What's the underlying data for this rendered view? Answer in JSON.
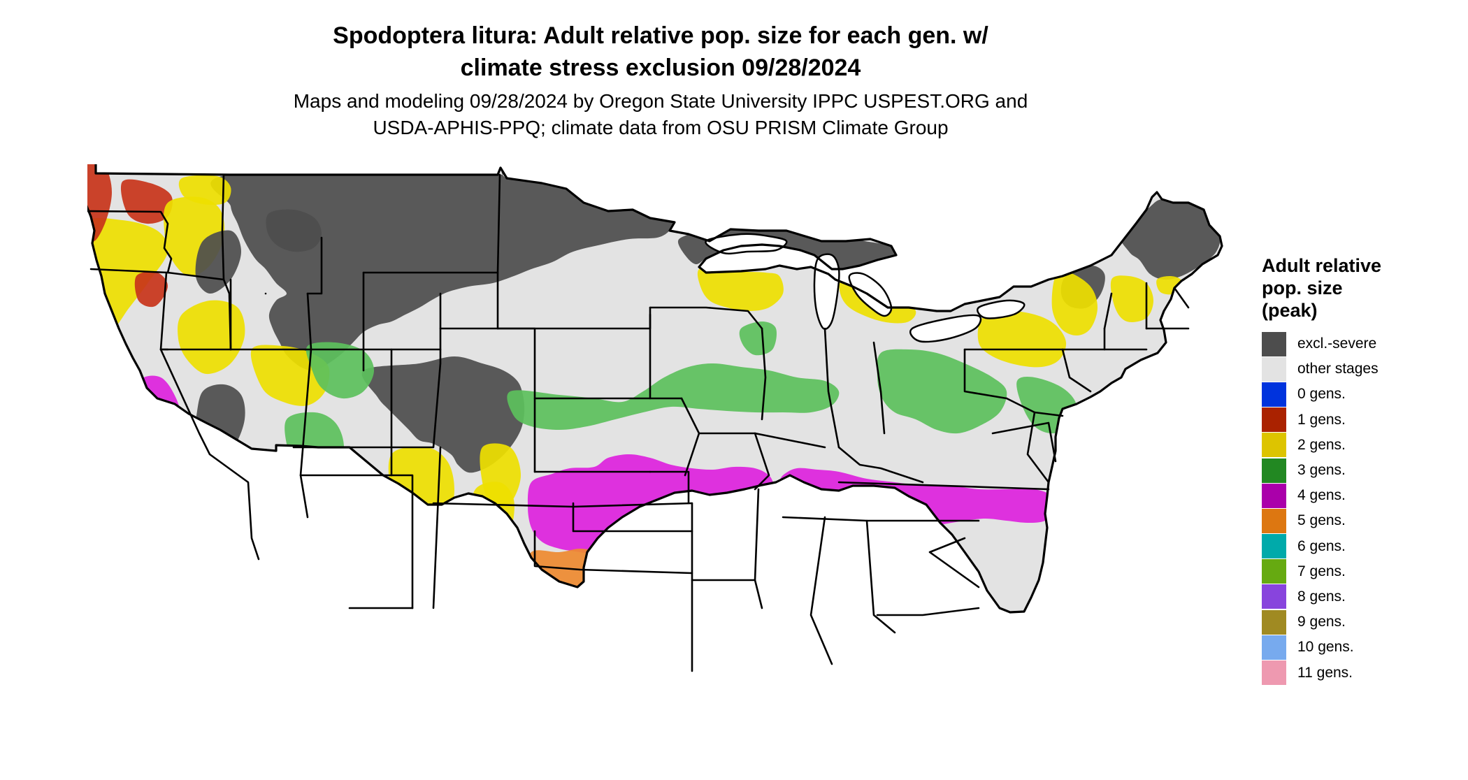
{
  "title": {
    "line1": "Spodoptera litura: Adult relative pop. size for each gen. w/",
    "line2": "climate stress exclusion 09/28/2024"
  },
  "subtitle": {
    "line1": "Maps and modeling 09/28/2024 by Oregon State University IPPC USPEST.ORG and",
    "line2": "USDA-APHIS-PPQ; climate data from OSU PRISM Climate Group"
  },
  "legend": {
    "title_lines": [
      "Adult relative",
      "pop. size",
      "(peak)"
    ],
    "items": [
      {
        "label": "excl.-severe",
        "color": "#4d4d4d"
      },
      {
        "label": "other stages",
        "color": "#e3e3e3"
      },
      {
        "label": "0 gens.",
        "color": "#0033dd"
      },
      {
        "label": "1 gens.",
        "color": "#aa2200"
      },
      {
        "label": "2 gens.",
        "color": "#ddc400"
      },
      {
        "label": "3 gens.",
        "color": "#228822"
      },
      {
        "label": "4 gens.",
        "color": "#aa00aa"
      },
      {
        "label": "5 gens.",
        "color": "#dd7711"
      },
      {
        "label": "6 gens.",
        "color": "#00aaaa"
      },
      {
        "label": "7 gens.",
        "color": "#66aa11"
      },
      {
        "label": "8 gens.",
        "color": "#8844dd"
      },
      {
        "label": "9 gens.",
        "color": "#a08a22"
      },
      {
        "label": "10 gens.",
        "color": "#77aaee"
      },
      {
        "label": "11 gens.",
        "color": "#ee99b0"
      }
    ]
  },
  "map": {
    "region": "Contiguous United States",
    "palette": {
      "excluded": "#4d4d4d",
      "other": "#e3e3e3",
      "gen1": "#c8341a",
      "gen2": "#eee000",
      "gen3": "#5cc05c",
      "gen4": "#dd22dd",
      "gen5": "#ee8a30",
      "gen6": "#00ccdd",
      "gen7": "#7ac21a",
      "border": "#000000"
    }
  }
}
